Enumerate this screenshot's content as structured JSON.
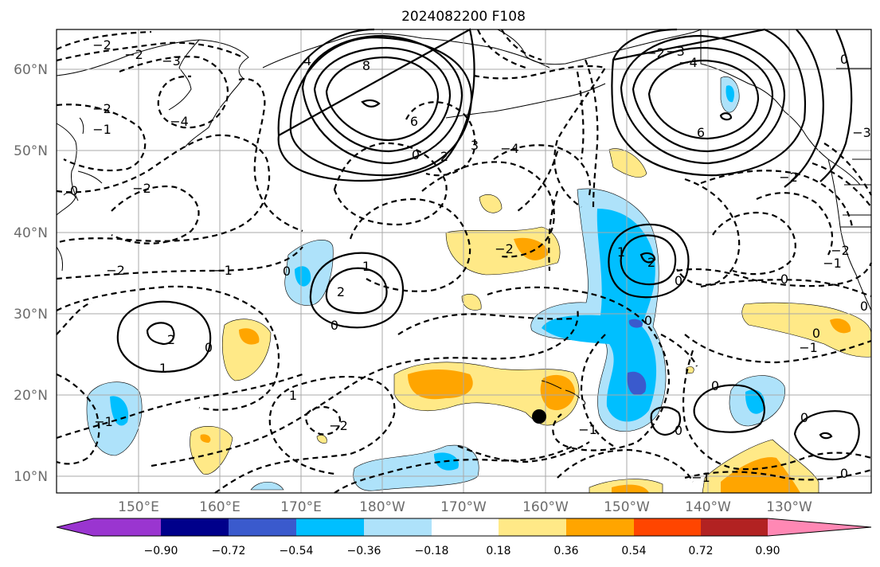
{
  "title": "2024082200 F108",
  "lat_labels": [
    "60°N",
    "50°N",
    "40°N",
    "30°N",
    "20°N",
    "10°N"
  ],
  "lon_labels": [
    "150°E",
    "160°E",
    "170°E",
    "180°W",
    "170°W",
    "160°W",
    "150°W",
    "140°W",
    "130°W"
  ],
  "colorbar": {
    "tick_labels": [
      "−0.90",
      "−0.72",
      "−0.54",
      "−0.36",
      "−0.18",
      "0.18",
      "0.36",
      "0.54",
      "0.72",
      "0.90"
    ],
    "colors": [
      "#9a35d0",
      "#00008b",
      "#3a5acd",
      "#00bfff",
      "#aee2fa",
      "#ffffff",
      "#ffe987",
      "#ffa500",
      "#ff4500",
      "#b22222",
      "#ff88b4"
    ]
  },
  "contour_labels": [
    "8",
    "6",
    "4",
    "3",
    "2",
    "1",
    "0",
    "−1",
    "−2",
    "−3",
    "−4"
  ],
  "marker": "black-dot"
}
